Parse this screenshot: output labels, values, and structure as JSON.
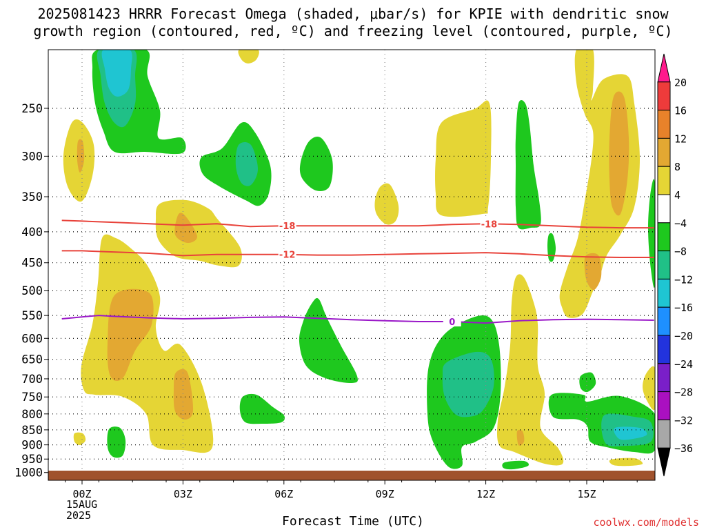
{
  "title_line1": "2025081423 HRRR Forecast Omega (shaded, μbar/s) for KPIE with dendritic snow",
  "title_line2": "growth region (contoured, red, ºC) and freezing level (contoured, purple, ºC)",
  "xlabel": "Forecast Time (UTC)",
  "date_line1": "15AUG",
  "date_line2": "2025",
  "credit": "coolwx.com/models",
  "chart_data": {
    "type": "heatmap",
    "x": {
      "ticks": [
        "00Z",
        "03Z",
        "06Z",
        "09Z",
        "12Z",
        "15Z"
      ],
      "range_hours": [
        -0.6,
        17
      ]
    },
    "y": {
      "ticks": [
        250,
        300,
        350,
        400,
        450,
        500,
        550,
        600,
        650,
        700,
        750,
        800,
        850,
        900,
        950,
        1000
      ],
      "range": [
        200,
        1030
      ],
      "scale": "log",
      "inverted": true
    },
    "colorbar": {
      "labels": [
        "20",
        "16",
        "12",
        "8",
        "4",
        "−4",
        "−8",
        "−12",
        "−16",
        "−20",
        "−24",
        "−28",
        "−32",
        "−36"
      ],
      "colors": [
        "#ff1a8c",
        "#ee3b3b",
        "#e8822a",
        "#e3a832",
        "#e5d535",
        "#ffffff",
        "#1ec81e",
        "#20c087",
        "#1fc5d2",
        "#1e90ff",
        "#2233dd",
        "#7a1fc9",
        "#aa10c0",
        "#a8a8a8",
        "#000000"
      ]
    },
    "contours": [
      {
        "color": "#e8423a",
        "label": "-18",
        "points": [
          [
            -0.6,
            383
          ],
          [
            0,
            384
          ],
          [
            1,
            386
          ],
          [
            2,
            388
          ],
          [
            3,
            390
          ],
          [
            4,
            388
          ],
          [
            4.5,
            390
          ],
          [
            5,
            392
          ],
          [
            6,
            391
          ],
          [
            7,
            391
          ],
          [
            8,
            391
          ],
          [
            9,
            391
          ],
          [
            10,
            391
          ],
          [
            11,
            389
          ],
          [
            12,
            388
          ],
          [
            13,
            389
          ],
          [
            14,
            391
          ],
          [
            15,
            393
          ],
          [
            16,
            394
          ],
          [
            17,
            394
          ]
        ],
        "label_at": [
          [
            6.1,
            391
          ],
          [
            12.1,
            388
          ]
        ]
      },
      {
        "color": "#e8423a",
        "label": "-12",
        "points": [
          [
            -0.6,
            430
          ],
          [
            0,
            430
          ],
          [
            1,
            432
          ],
          [
            2,
            434
          ],
          [
            3,
            438
          ],
          [
            4,
            436
          ],
          [
            5,
            436
          ],
          [
            6,
            436
          ],
          [
            7,
            437
          ],
          [
            8,
            437
          ],
          [
            9,
            436
          ],
          [
            10,
            435
          ],
          [
            11,
            434
          ],
          [
            12,
            433
          ],
          [
            13,
            435
          ],
          [
            14,
            438
          ],
          [
            15,
            440
          ],
          [
            16,
            441
          ],
          [
            17,
            441
          ]
        ],
        "label_at": [
          [
            6.1,
            436
          ]
        ]
      },
      {
        "color": "#9a18c8",
        "label": "0",
        "points": [
          [
            -0.6,
            557
          ],
          [
            0,
            553
          ],
          [
            0.5,
            550
          ],
          [
            1,
            552
          ],
          [
            2,
            555
          ],
          [
            3,
            557
          ],
          [
            4,
            556
          ],
          [
            5,
            554
          ],
          [
            6,
            553
          ],
          [
            7,
            556
          ],
          [
            8,
            559
          ],
          [
            9,
            561
          ],
          [
            10,
            563
          ],
          [
            11,
            563
          ],
          [
            12,
            566
          ],
          [
            13,
            561
          ],
          [
            14,
            559
          ],
          [
            15,
            558
          ],
          [
            16,
            559
          ],
          [
            17,
            560
          ]
        ],
        "label_at": [
          [
            11,
            563
          ]
        ]
      }
    ],
    "surface": {
      "color": "#a0522d",
      "pressure_top": 1010
    }
  }
}
